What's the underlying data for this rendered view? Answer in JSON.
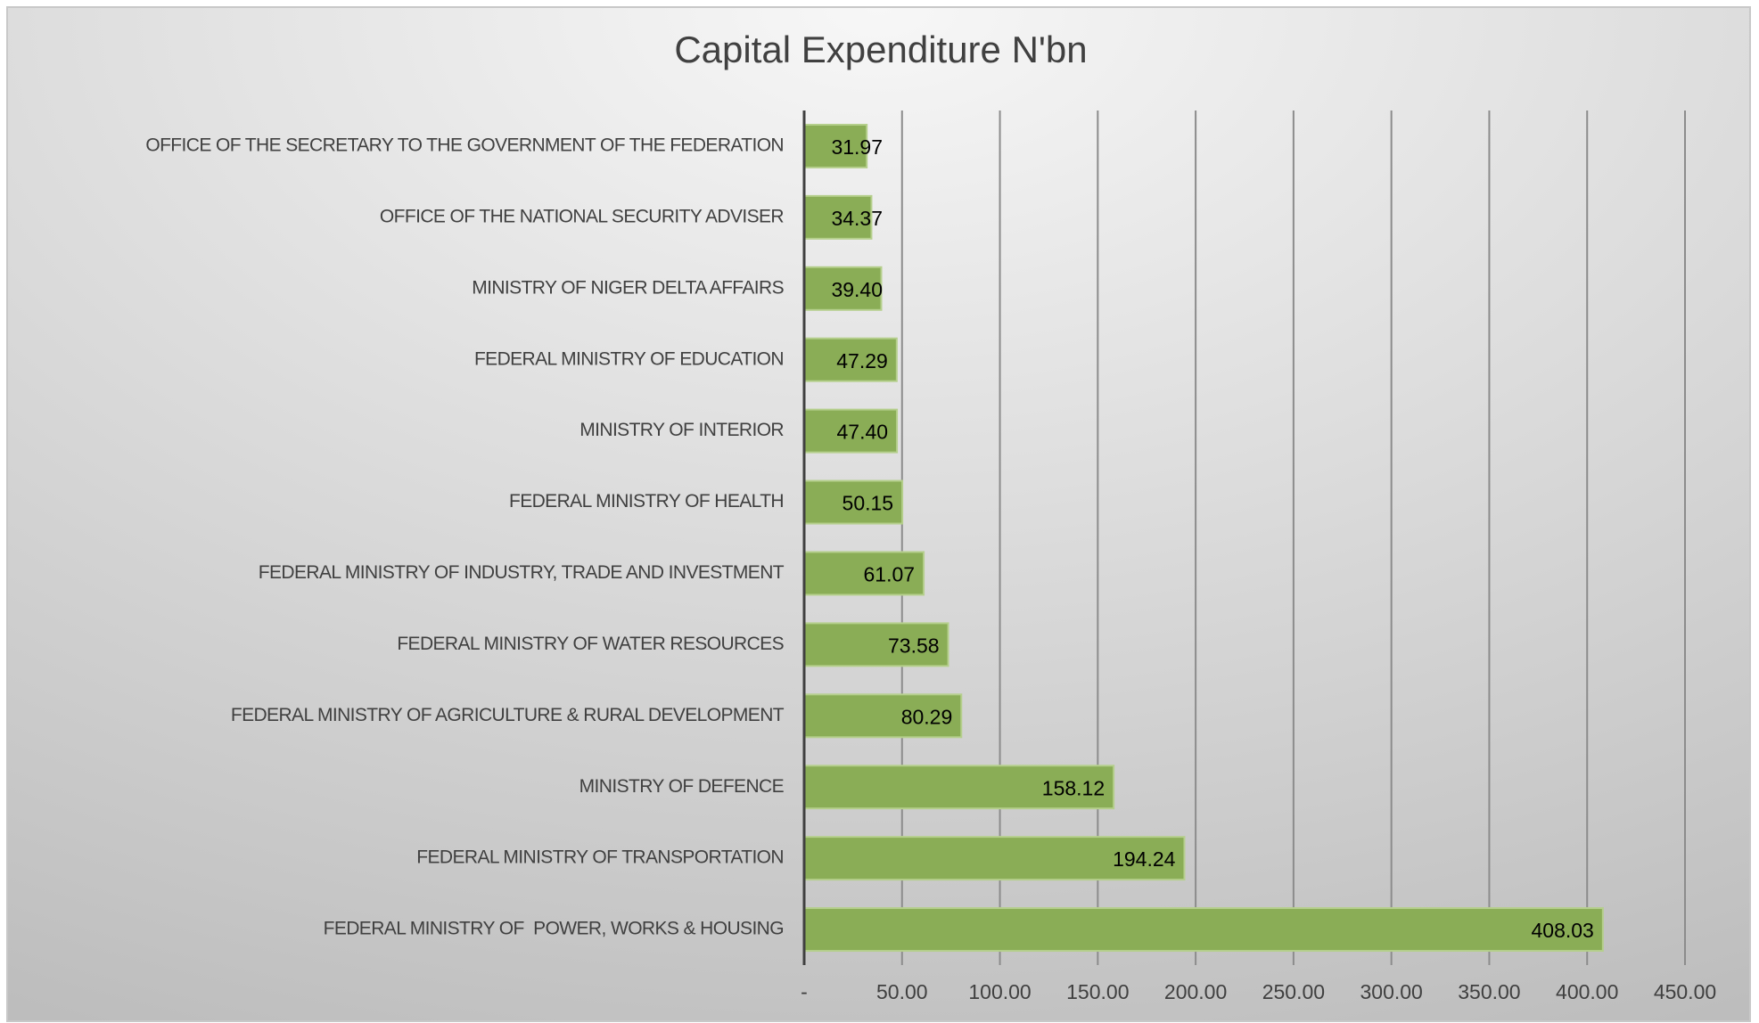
{
  "chart_data": {
    "type": "bar",
    "orientation": "horizontal",
    "title": "Capital Expenditure N'bn",
    "categories": [
      "OFFICE OF THE SECRETARY TO THE GOVERNMENT OF THE FEDERATION",
      "OFFICE OF THE NATIONAL SECURITY ADVISER",
      "MINISTRY OF NIGER DELTA AFFAIRS",
      "FEDERAL MINISTRY OF EDUCATION",
      "MINISTRY OF INTERIOR",
      "FEDERAL MINISTRY OF HEALTH",
      "FEDERAL MINISTRY OF INDUSTRY, TRADE AND INVESTMENT",
      "FEDERAL MINISTRY OF WATER RESOURCES",
      "FEDERAL MINISTRY OF AGRICULTURE & RURAL DEVELOPMENT",
      "MINISTRY OF DEFENCE",
      "FEDERAL MINISTRY OF TRANSPORTATION",
      "FEDERAL MINISTRY OF  POWER, WORKS & HOUSING"
    ],
    "values": [
      31.97,
      34.37,
      39.4,
      47.29,
      47.4,
      50.15,
      61.07,
      73.58,
      80.29,
      158.12,
      194.24,
      408.03
    ],
    "value_labels": [
      "31.97",
      "34.37",
      "39.40",
      "47.29",
      "47.40",
      "50.15",
      "61.07",
      "73.58",
      "80.29",
      "158.12",
      "194.24",
      "408.03"
    ],
    "color": "#8aad56",
    "xlim": [
      0,
      450
    ],
    "xticks": [
      {
        "value": 0,
        "label": "-"
      },
      {
        "value": 50,
        "label": "50.00"
      },
      {
        "value": 100,
        "label": "100.00"
      },
      {
        "value": 150,
        "label": "150.00"
      },
      {
        "value": 200,
        "label": "200.00"
      },
      {
        "value": 250,
        "label": "250.00"
      },
      {
        "value": 300,
        "label": "300.00"
      },
      {
        "value": 350,
        "label": "350.00"
      },
      {
        "value": 400,
        "label": "400.00"
      },
      {
        "value": 450,
        "label": "450.00"
      }
    ],
    "grid": true
  }
}
